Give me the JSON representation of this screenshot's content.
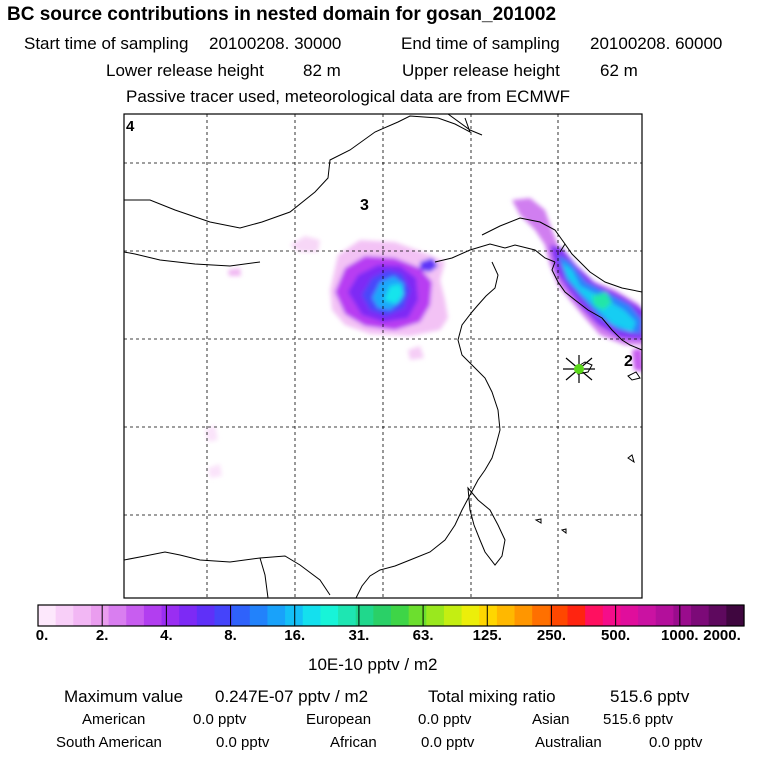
{
  "header": {
    "title": "BC  source contributions in nested domain for gosan_201002",
    "start_label": "Start time of sampling",
    "start_value": "20100208. 30000",
    "end_label": "End time of sampling",
    "end_value": "20100208. 60000",
    "lower_label": "Lower release height",
    "lower_value": "82 m",
    "upper_label": "Upper release height",
    "upper_value": "62 m",
    "note": "Passive tracer used, meteorological data are from ECMWF"
  },
  "map": {
    "region_labels": [
      "4",
      "3",
      "2"
    ],
    "station_marker": "gosan-station",
    "colors": {
      "frame": "#000000",
      "grid": "#000000"
    }
  },
  "legend": {
    "ticks": [
      "0.",
      "2.",
      "4.",
      "8.",
      "16.",
      "31.",
      "63.",
      "125.",
      "250.",
      "500.",
      "1000.",
      "2000."
    ],
    "unit": "10E-10 pptv / m2",
    "colors": [
      "#fde8fc",
      "#f8cff8",
      "#f2b7f4",
      "#ea9def",
      "#d97ef0",
      "#c85df0",
      "#b23ef0",
      "#9a2ef2",
      "#7d2af5",
      "#5f30f8",
      "#4544fa",
      "#2f62fb",
      "#2282fb",
      "#19a2fa",
      "#14c0f7",
      "#14e0ee",
      "#18f4d8",
      "#1ee6b2",
      "#20d88c",
      "#2ad067",
      "#3ed547",
      "#6cdf2e",
      "#9ae81e",
      "#c4ee12",
      "#ecee0a",
      "#ffd600",
      "#ffb800",
      "#ff9600",
      "#ff7000",
      "#ff4700",
      "#ff2410",
      "#ff1060",
      "#f50d8a",
      "#e00e9c",
      "#ca12a2",
      "#b30f9b",
      "#9a0c8d",
      "#7c0a78",
      "#5e095e",
      "#3f063f"
    ]
  },
  "summary": {
    "max_label": "Maximum value",
    "max_value": "0.247E-07 pptv / m2",
    "total_label": "Total mixing ratio",
    "total_value": "515.6 pptv",
    "rows": [
      [
        {
          "label": "American",
          "value": "0.0 pptv"
        },
        {
          "label": "European",
          "value": "0.0 pptv"
        },
        {
          "label": "Asian",
          "value": "515.6 pptv"
        }
      ],
      [
        {
          "label": "South American",
          "value": "0.0 pptv"
        },
        {
          "label": "African",
          "value": "0.0 pptv"
        },
        {
          "label": "Australian",
          "value": "0.0 pptv"
        }
      ]
    ]
  }
}
